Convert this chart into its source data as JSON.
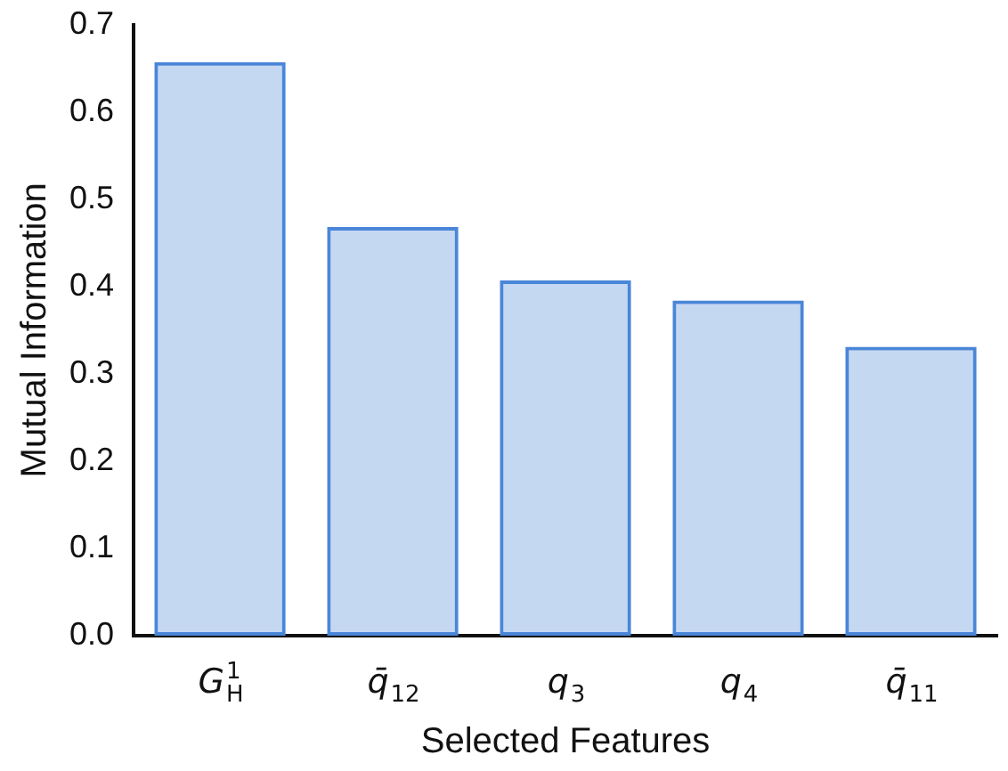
{
  "chart_data": {
    "type": "bar",
    "xlabel": "Selected Features",
    "ylabel": "Mutual Information",
    "categories": [
      "G$^{1}$$_{H}$",
      "q̄$_{12}$",
      "q$_{3}$",
      "q$_{4}$",
      "q̄$_{11}$"
    ],
    "values": [
      0.657,
      0.468,
      0.407,
      0.384,
      0.331
    ],
    "color": "#4a86d8",
    "ylim": [
      0,
      0.7
    ],
    "yticks": [
      {
        "value": 0,
        "label": "0.0"
      },
      {
        "value": 0.1,
        "label": "0.1"
      },
      {
        "value": 0.2,
        "label": "0.2"
      },
      {
        "value": 0.3,
        "label": "0.3"
      },
      {
        "value": 0.4,
        "label": "0.4"
      },
      {
        "value": 0.5,
        "label": "0.5"
      },
      {
        "value": 0.6,
        "label": "0.6"
      },
      {
        "value": 0.7,
        "label": "0.7"
      }
    ],
    "grid": false,
    "legend": false
  }
}
